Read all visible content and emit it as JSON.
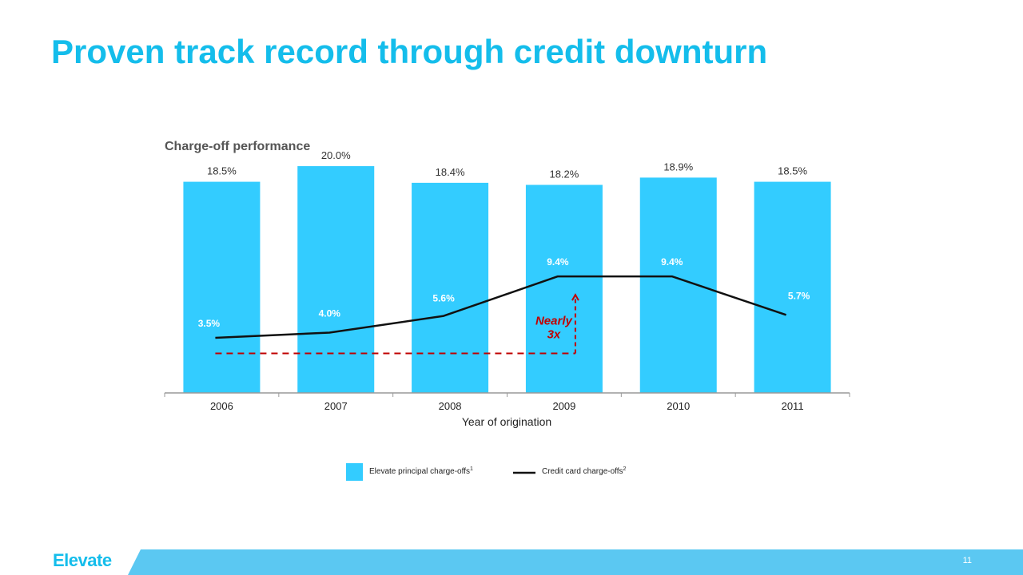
{
  "slide": {
    "title": "Proven track record through credit downturn",
    "logo": "Elevate",
    "page_number": "11"
  },
  "colors": {
    "title": "#14BDEB",
    "bars": "#33CCFF",
    "line": "#111111",
    "annotation": "#C00000",
    "footer": "#5BC8F2"
  },
  "chart_data": {
    "type": "bar",
    "title": "Charge-off performance",
    "xlabel": "Year of origination",
    "ylabel": "",
    "categories": [
      "2006",
      "2007",
      "2008",
      "2009",
      "2010",
      "2011"
    ],
    "series": [
      {
        "name": "Elevate principal charge-offs",
        "name_superscript": "1",
        "type": "bar",
        "values": [
          18.5,
          20.0,
          18.4,
          18.2,
          18.9,
          18.5
        ],
        "labels": [
          "18.5%",
          "20.0%",
          "18.4%",
          "18.2%",
          "18.9%",
          "18.5%"
        ]
      },
      {
        "name": "Credit card charge-offs",
        "name_superscript": "2",
        "type": "line",
        "values": [
          3.5,
          4.0,
          5.6,
          9.4,
          9.4,
          5.7
        ],
        "labels": [
          "3.5%",
          "4.0%",
          "5.6%",
          "9.4%",
          "9.4%",
          "5.7%"
        ]
      }
    ],
    "ylim": [
      -1.8,
      22
    ],
    "grid": false,
    "legend": "bottom-center",
    "annotation": {
      "lines": [
        "Nearly",
        "3x"
      ],
      "from_value": 2.0,
      "to_value": 9.4,
      "from_category": "2006",
      "to_category": "2009"
    }
  }
}
